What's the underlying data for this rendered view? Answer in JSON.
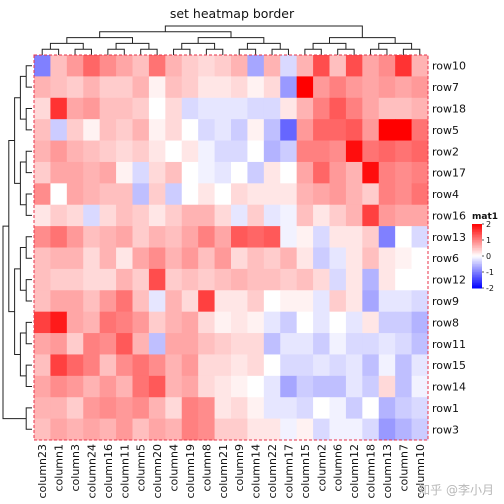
{
  "chart_data": {
    "type": "heatmap",
    "title": "set heatmap border",
    "rows": [
      "row10",
      "row7",
      "row18",
      "row5",
      "row2",
      "row17",
      "row4",
      "row16",
      "row13",
      "row6",
      "row12",
      "row9",
      "row8",
      "row11",
      "row15",
      "row14",
      "row1",
      "row3"
    ],
    "columns": [
      "column23",
      "column1",
      "column3",
      "column24",
      "column16",
      "column11",
      "column5",
      "column20",
      "column4",
      "column19",
      "column8",
      "column21",
      "column9",
      "column14",
      "column22",
      "column17",
      "column15",
      "column2",
      "column6",
      "column12",
      "column18",
      "column13",
      "column7",
      "column10"
    ],
    "values": [
      [
        -1.0,
        0.5,
        0.8,
        1.2,
        0.9,
        0.7,
        0.5,
        1.1,
        0.6,
        0.4,
        0.3,
        0.4,
        0.6,
        -0.7,
        0.6,
        -0.3,
        0.6,
        1.4,
        0.5,
        1.4,
        0.7,
        0.9,
        1.6,
        0.6
      ],
      [
        0.6,
        0.5,
        0.4,
        0.6,
        0.4,
        0.4,
        0.6,
        0.1,
        0.5,
        0.4,
        0.2,
        0.2,
        0.3,
        0.1,
        0.3,
        -0.8,
        2.0,
        0.8,
        1.0,
        0.8,
        0.7,
        0.8,
        0.7,
        0.8
      ],
      [
        0.3,
        1.6,
        0.7,
        0.8,
        0.5,
        0.5,
        0.4,
        0.0,
        0.3,
        -0.3,
        -0.2,
        -0.2,
        -0.2,
        -0.3,
        -0.3,
        0.2,
        0.6,
        1.0,
        1.3,
        1.0,
        0.7,
        0.5,
        0.5,
        0.6
      ],
      [
        0.5,
        -0.4,
        0.4,
        0.1,
        0.5,
        0.4,
        0.6,
        0.1,
        0.3,
        0.0,
        -0.3,
        -0.2,
        -0.4,
        0.1,
        -0.5,
        -1.2,
        0.8,
        1.2,
        1.2,
        1.3,
        0.8,
        2.0,
        2.0,
        1.1
      ],
      [
        0.6,
        0.8,
        0.6,
        0.5,
        0.4,
        0.3,
        0.4,
        0.2,
        0.0,
        0.2,
        -0.1,
        -0.3,
        -0.3,
        0.0,
        -0.6,
        -0.4,
        1.0,
        1.0,
        0.9,
        1.9,
        1.1,
        1.2,
        1.1,
        1.2
      ],
      [
        0.4,
        0.7,
        0.7,
        0.6,
        0.7,
        0.1,
        -0.3,
        0.3,
        0.5,
        0.0,
        -0.1,
        -0.2,
        0.0,
        -0.4,
        0.2,
        0.0,
        0.7,
        1.2,
        0.8,
        0.6,
        1.9,
        1.0,
        0.9,
        1.0
      ],
      [
        0.9,
        0.0,
        0.7,
        0.6,
        0.5,
        0.5,
        -0.5,
        0.4,
        -0.4,
        0.0,
        0.2,
        0.0,
        0.3,
        0.2,
        0.2,
        0.2,
        0.6,
        0.7,
        0.8,
        0.6,
        0.4,
        1.0,
        0.9,
        1.1
      ],
      [
        0.2,
        0.4,
        0.3,
        -0.3,
        0.3,
        0.5,
        0.4,
        0.2,
        0.4,
        0.6,
        0.6,
        0.3,
        -0.2,
        0.4,
        -0.2,
        -0.1,
        0.5,
        0.2,
        0.4,
        0.6,
        1.5,
        0.8,
        0.7,
        0.7
      ],
      [
        0.9,
        1.1,
        0.8,
        0.5,
        0.6,
        0.7,
        0.4,
        0.6,
        0.5,
        0.7,
        1.0,
        0.7,
        1.3,
        1.2,
        1.3,
        -0.1,
        0.1,
        -0.3,
        0.2,
        0.2,
        0.4,
        -1.0,
        0.0,
        -0.3
      ],
      [
        0.5,
        0.6,
        0.6,
        0.3,
        0.6,
        0.2,
        0.7,
        0.9,
        0.6,
        0.8,
        0.5,
        0.8,
        0.3,
        0.5,
        0.4,
        0.6,
        0.2,
        -0.4,
        -0.2,
        0.2,
        0.5,
        0.2,
        0.1,
        0.0
      ],
      [
        0.5,
        0.4,
        0.4,
        0.3,
        0.3,
        0.6,
        0.4,
        1.4,
        0.4,
        0.5,
        0.4,
        0.5,
        0.6,
        0.5,
        0.5,
        0.4,
        0.5,
        0.3,
        -0.3,
        0.2,
        -0.6,
        0.2,
        0.0,
        0.0
      ],
      [
        0.5,
        0.7,
        0.7,
        0.5,
        0.8,
        1.1,
        0.5,
        -0.2,
        0.6,
        0.3,
        1.5,
        0.2,
        0.2,
        0.4,
        0.0,
        0.1,
        0.1,
        -0.2,
        0.4,
        0.2,
        -0.7,
        -0.2,
        -0.2,
        -0.3
      ],
      [
        1.5,
        1.8,
        0.7,
        0.6,
        1.1,
        1.0,
        0.8,
        0.4,
        0.6,
        0.7,
        0.3,
        0.1,
        0.2,
        0.1,
        -0.2,
        -0.4,
        0.0,
        -0.2,
        0.0,
        -0.2,
        0.2,
        -0.4,
        -0.4,
        -0.6
      ],
      [
        0.7,
        0.8,
        0.4,
        1.0,
        0.9,
        1.3,
        0.6,
        -0.5,
        0.7,
        0.7,
        0.5,
        0.4,
        0.3,
        0.3,
        -0.5,
        -0.2,
        -0.2,
        -0.4,
        -0.1,
        -0.3,
        -0.3,
        -0.2,
        -0.3,
        -0.5
      ],
      [
        0.5,
        1.5,
        1.2,
        1.0,
        0.5,
        0.9,
        1.1,
        0.9,
        0.6,
        0.8,
        0.3,
        0.3,
        0.2,
        0.3,
        0.0,
        -0.3,
        -0.3,
        -0.2,
        -0.3,
        -0.2,
        -0.5,
        -0.1,
        -0.5,
        -0.2
      ],
      [
        0.7,
        0.9,
        0.8,
        0.6,
        0.8,
        0.6,
        1.1,
        1.3,
        0.6,
        0.7,
        0.3,
        0.2,
        0.1,
        0.0,
        -0.2,
        -0.7,
        -0.4,
        -0.5,
        -0.5,
        -0.2,
        -0.4,
        0.3,
        -0.5,
        -0.1
      ],
      [
        0.6,
        0.6,
        0.4,
        0.8,
        0.9,
        0.8,
        0.9,
        0.6,
        0.3,
        1.0,
        0.9,
        0.2,
        0.3,
        0.1,
        -0.2,
        -0.2,
        -0.3,
        0.0,
        -0.1,
        -0.4,
        0.0,
        -0.6,
        -0.4,
        -0.3
      ],
      [
        0.5,
        0.7,
        0.6,
        0.7,
        0.6,
        0.8,
        0.5,
        0.7,
        0.6,
        1.0,
        0.9,
        0.4,
        0.4,
        0.2,
        0.2,
        -0.1,
        0.1,
        -0.3,
        -0.1,
        -0.1,
        -0.3,
        -0.8,
        -0.6,
        -0.4
      ]
    ],
    "legend": {
      "title": "mat1",
      "ticks": [
        2,
        1,
        0,
        -1,
        -2
      ],
      "colors": {
        "high": "#ff0000",
        "mid": "#ffffff",
        "low": "#0000ff"
      },
      "placement": "right"
    },
    "border": {
      "color": "#e8334a",
      "style": "dashed"
    }
  },
  "watermark": "知乎 @李小月"
}
